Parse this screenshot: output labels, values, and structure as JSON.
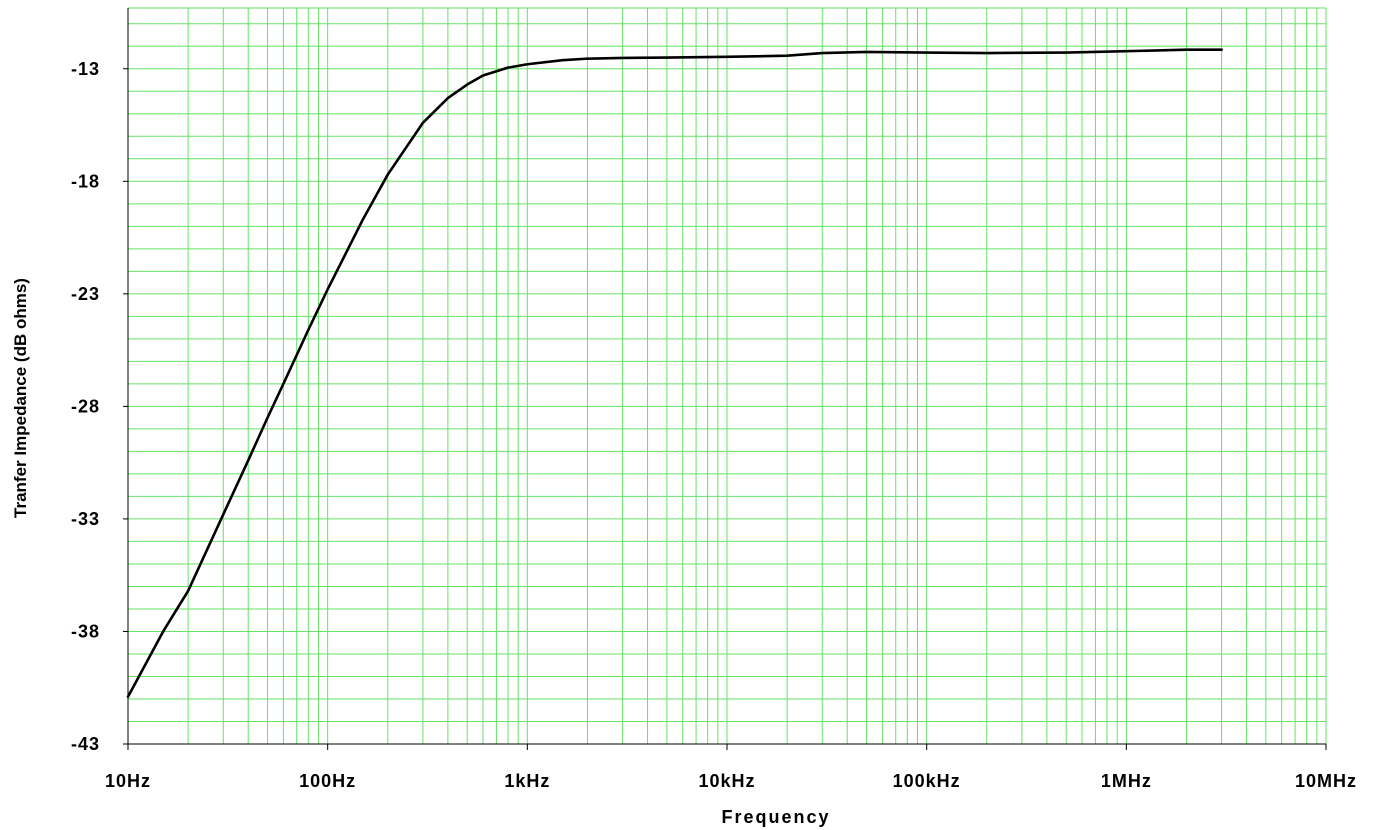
{
  "chart_data": {
    "type": "line",
    "title": "",
    "xlabel": "Frequency",
    "ylabel": "Tranfer Impedance (dB ohms)",
    "x_scale": "log",
    "xlim": [
      10,
      10000000
    ],
    "ylim": [
      -43,
      -10.3
    ],
    "grid": true,
    "colors": {
      "grid": "#66e266",
      "line": "#000000",
      "axis": "#000000"
    },
    "x_ticks": [
      {
        "value": 10,
        "label": "10Hz"
      },
      {
        "value": 100,
        "label": "100Hz"
      },
      {
        "value": 1000,
        "label": "1kHz"
      },
      {
        "value": 10000,
        "label": "10kHz"
      },
      {
        "value": 100000,
        "label": "100kHz"
      },
      {
        "value": 1000000,
        "label": "1MHz"
      },
      {
        "value": 10000000,
        "label": "10MHz"
      }
    ],
    "y_ticks": [
      {
        "value": -13,
        "label": "-13"
      },
      {
        "value": -18,
        "label": "-18"
      },
      {
        "value": -23,
        "label": "-23"
      },
      {
        "value": -28,
        "label": "-28"
      },
      {
        "value": -33,
        "label": "-33"
      },
      {
        "value": -38,
        "label": "-38"
      },
      {
        "value": -43,
        "label": "-43"
      }
    ],
    "series": [
      {
        "x": [
          10,
          15,
          20,
          30,
          40,
          50,
          60,
          80,
          100,
          150,
          200,
          300,
          400,
          500,
          600,
          800,
          1000,
          1500,
          2000,
          3000,
          5000,
          10000,
          20000,
          30000,
          50000,
          100000,
          200000,
          500000,
          1000000,
          2000000,
          3000000
        ],
        "y": [
          -40.9,
          -38.0,
          -36.2,
          -32.8,
          -30.4,
          -28.5,
          -27.0,
          -24.6,
          -22.8,
          -19.7,
          -17.7,
          -15.4,
          -14.3,
          -13.7,
          -13.3,
          -12.95,
          -12.8,
          -12.62,
          -12.55,
          -12.52,
          -12.5,
          -12.47,
          -12.42,
          -12.3,
          -12.25,
          -12.28,
          -12.3,
          -12.28,
          -12.22,
          -12.15,
          -12.15
        ]
      }
    ]
  }
}
